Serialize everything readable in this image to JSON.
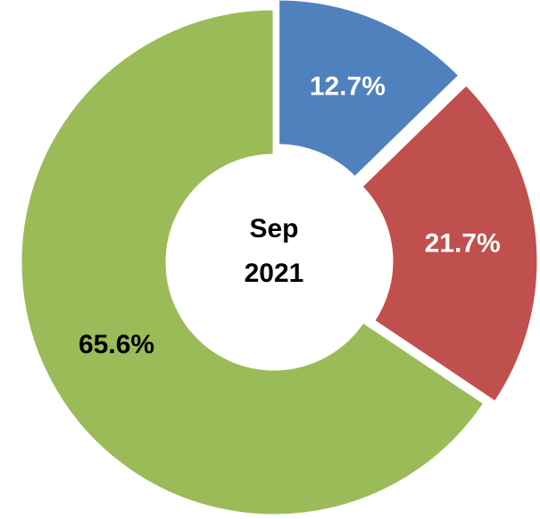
{
  "chart_data": {
    "type": "donut",
    "title_lines": [
      "Sep",
      "2021"
    ],
    "values": [
      12.7,
      21.7,
      65.6
    ],
    "value_labels": [
      "12.7%",
      "21.7%",
      "65.6%"
    ],
    "colors": [
      "#4f81bd",
      "#c0504d",
      "#9bbb59"
    ],
    "label_colors": [
      "#ffffff",
      "#ffffff",
      "#000000"
    ],
    "exploded": [
      true,
      true,
      false
    ]
  }
}
